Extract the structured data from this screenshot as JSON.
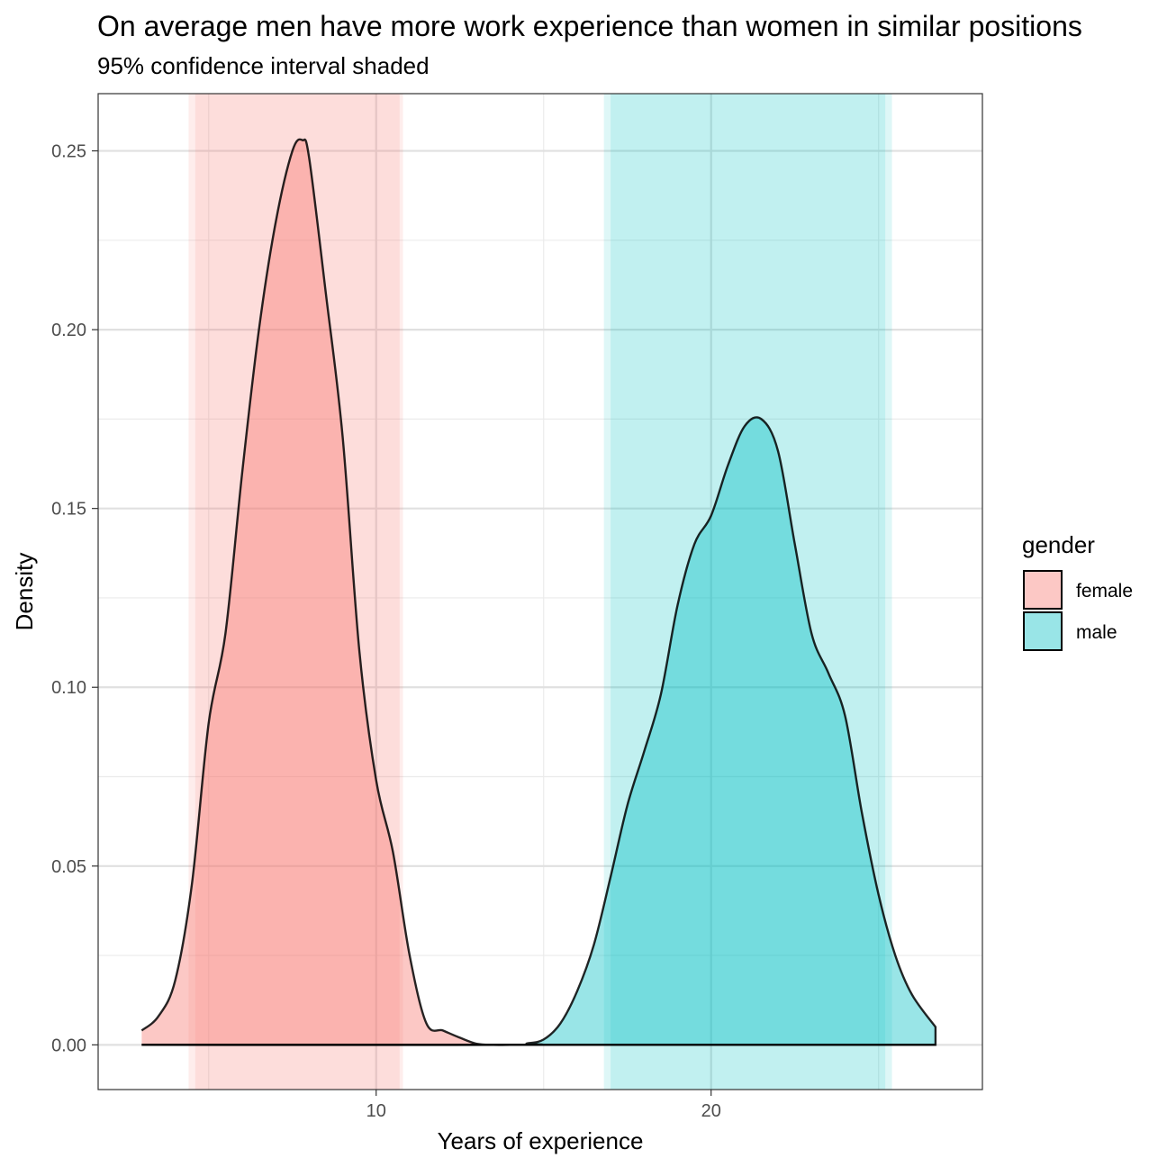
{
  "chart_data": {
    "type": "area",
    "title": "On average men have more work experience than women in similar positions",
    "subtitle": "95% confidence interval shaded",
    "xlabel": "Years of experience",
    "ylabel": "Density",
    "xlim": [
      1.7,
      28.1
    ],
    "ylim": [
      -0.0125,
      0.266
    ],
    "x_ticks": [
      10,
      20
    ],
    "x_tick_labels": [
      "10",
      "20"
    ],
    "x_minor_ticks": [
      5,
      15,
      25
    ],
    "y_ticks": [
      0,
      0.05,
      0.1,
      0.15,
      0.2,
      0.25
    ],
    "y_tick_labels": [
      "0.00",
      "0.05",
      "0.10",
      "0.15",
      "0.20",
      "0.25"
    ],
    "y_minor_ticks": [
      0.025,
      0.075,
      0.125,
      0.175,
      0.225
    ],
    "grid": true,
    "legend": {
      "title": "gender",
      "position": "right"
    },
    "series": [
      {
        "name": "female",
        "color": "#F8766D",
        "ci_bands": [
          [
            4.6,
            10.7
          ],
          [
            4.4,
            10.8
          ]
        ],
        "points": [
          [
            3.0,
            0.004
          ],
          [
            3.5,
            0.008
          ],
          [
            4.0,
            0.018
          ],
          [
            4.5,
            0.045
          ],
          [
            5.0,
            0.09
          ],
          [
            5.5,
            0.115
          ],
          [
            6.0,
            0.16
          ],
          [
            6.5,
            0.2
          ],
          [
            7.0,
            0.23
          ],
          [
            7.5,
            0.25
          ],
          [
            7.8,
            0.253
          ],
          [
            8.0,
            0.248
          ],
          [
            8.5,
            0.21
          ],
          [
            9.0,
            0.17
          ],
          [
            9.5,
            0.11
          ],
          [
            10.0,
            0.074
          ],
          [
            10.5,
            0.054
          ],
          [
            11.0,
            0.025
          ],
          [
            11.5,
            0.006
          ],
          [
            12.0,
            0.004
          ],
          [
            12.5,
            0.002
          ],
          [
            13.0,
            0.0003
          ],
          [
            13.5,
            0.0
          ],
          [
            14.0,
            0.0
          ],
          [
            15.0,
            0.0
          ],
          [
            25.0,
            0.0
          ],
          [
            26.7,
            0.0
          ]
        ]
      },
      {
        "name": "male",
        "color": "#00BFC4",
        "ci_bands": [
          [
            17.0,
            25.2
          ],
          [
            16.8,
            25.4
          ]
        ],
        "points": [
          [
            3.0,
            0.0
          ],
          [
            14.0,
            0.0
          ],
          [
            14.5,
            0.0004
          ],
          [
            15.0,
            0.0015
          ],
          [
            15.5,
            0.006
          ],
          [
            16.0,
            0.015
          ],
          [
            16.5,
            0.028
          ],
          [
            17.0,
            0.047
          ],
          [
            17.5,
            0.067
          ],
          [
            18.0,
            0.082
          ],
          [
            18.5,
            0.098
          ],
          [
            19.0,
            0.123
          ],
          [
            19.5,
            0.14
          ],
          [
            20.0,
            0.148
          ],
          [
            20.5,
            0.162
          ],
          [
            21.0,
            0.173
          ],
          [
            21.5,
            0.175
          ],
          [
            22.0,
            0.166
          ],
          [
            22.5,
            0.14
          ],
          [
            23.0,
            0.115
          ],
          [
            23.5,
            0.104
          ],
          [
            24.0,
            0.092
          ],
          [
            24.5,
            0.065
          ],
          [
            25.0,
            0.042
          ],
          [
            25.5,
            0.025
          ],
          [
            26.0,
            0.014
          ],
          [
            26.7,
            0.005
          ]
        ]
      }
    ]
  }
}
